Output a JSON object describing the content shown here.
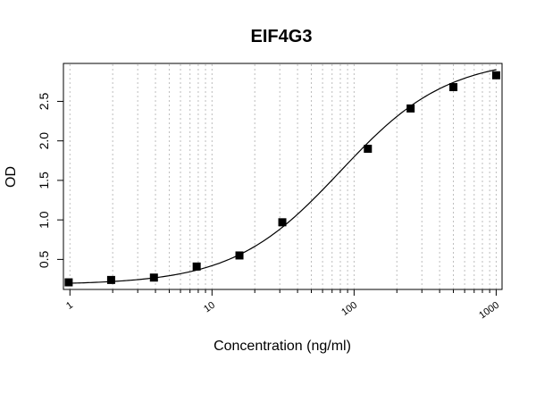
{
  "chart_data": {
    "type": "scatter",
    "title": "EIF4G3",
    "xlabel": "Concentration (ng/ml)",
    "ylabel": "OD",
    "x_scale": "log",
    "xlim": [
      0.9,
      1100
    ],
    "ylim": [
      0.12,
      2.98
    ],
    "x_ticks": [
      1,
      10,
      100,
      1000
    ],
    "x_tick_labels": [
      "1",
      "10",
      "100",
      "1000"
    ],
    "y_ticks": [
      0.5,
      1.0,
      1.5,
      2.0,
      2.5
    ],
    "y_tick_labels": [
      "0.5",
      "1.0",
      "1.5",
      "2.0",
      "2.5"
    ],
    "grid": "vertical dotted at log minor ticks",
    "legend": "none",
    "series": [
      {
        "type": "scatter",
        "marker": "square",
        "color": "#000000",
        "x": [
          0.98,
          1.95,
          3.9,
          7.8,
          15.6,
          31.25,
          125,
          250,
          500,
          1000
        ],
        "y": [
          0.21,
          0.24,
          0.27,
          0.41,
          0.55,
          0.97,
          1.9,
          2.41,
          2.68,
          2.83
        ]
      },
      {
        "type": "line",
        "curve": "4PL fit",
        "color": "#000000"
      }
    ]
  }
}
